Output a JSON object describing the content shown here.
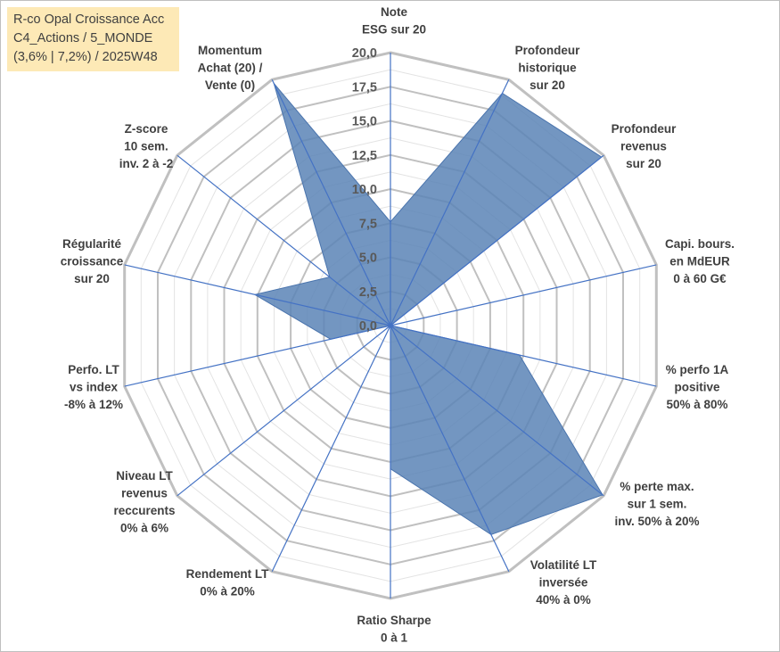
{
  "title_box": {
    "line1": "R-co Opal Croissance Acc",
    "line2": "C4_Actions / 5_MONDE",
    "line3": "(3,6% | 7,2%) / 2025W48"
  },
  "chart_data": {
    "type": "radar",
    "series": [
      {
        "name": "R-co Opal Croissance Acc",
        "color": "#5b84b6"
      }
    ],
    "r_range": [
      0,
      20
    ],
    "r_ticks": [
      "0,0",
      "2,5",
      "5,0",
      "7,5",
      "10,0",
      "12,5",
      "15,0",
      "17,5",
      "20,0"
    ],
    "axes": [
      {
        "label": [
          "Note",
          "ESG sur 20"
        ],
        "value": 7.6
      },
      {
        "label": [
          "Profondeur",
          "historique",
          "sur 20"
        ],
        "value": 18.9
      },
      {
        "label": [
          "Profondeur",
          "revenus",
          "sur 20"
        ],
        "value": 19.8
      },
      {
        "label": [
          "Capi. bours.",
          "en MdEUR",
          "0 à 60 G€"
        ],
        "value": 0
      },
      {
        "label": [
          "% perfo 1A",
          "positive",
          "50% à 80%"
        ],
        "value": 9.7
      },
      {
        "label": [
          "% perte max.",
          "sur 1 sem.",
          "inv. 50% à 20%"
        ],
        "value": 19.9
      },
      {
        "label": [
          "Volatilité LT",
          "inversée",
          "40% à 0%"
        ],
        "value": 17.0
      },
      {
        "label": [
          "Ratio Sharpe",
          "0 à 1"
        ],
        "value": 10.5
      },
      {
        "label": [
          "Rendement LT",
          "0% à 20%"
        ],
        "value": 0
      },
      {
        "label": [
          "Niveau LT",
          "revenus",
          "reccurents",
          "0% à 6%"
        ],
        "value": 0
      },
      {
        "label": [
          "Perfo. LT",
          "vs index",
          "-8% à 12%"
        ],
        "value": 4.5
      },
      {
        "label": [
          "Régularité",
          "croissance",
          "sur 20"
        ],
        "value": 10.2
      },
      {
        "label": [
          "Z-score",
          "10 sem.",
          "inv. 2 à -2"
        ],
        "value": 5.7
      },
      {
        "label": [
          "Momentum",
          "Achat (20) /",
          "Vente (0)"
        ],
        "value": 19.7
      }
    ],
    "colors": {
      "series_fill": "#5b84b6",
      "spoke": "#4472c4",
      "grid_major": "#c0c0c0",
      "grid_minor": "#e3e3e3",
      "title_bg": "#fde9b6"
    }
  }
}
